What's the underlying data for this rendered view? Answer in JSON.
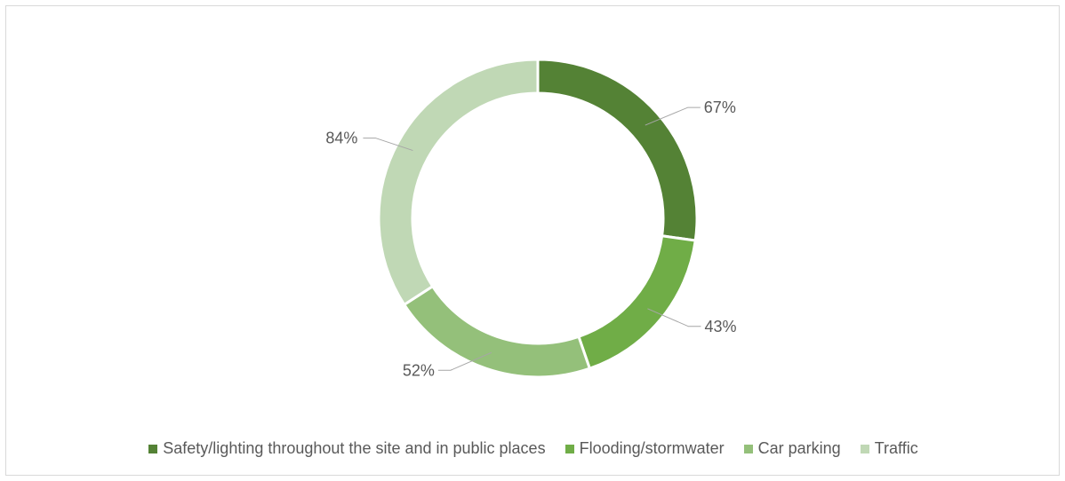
{
  "chart_data": {
    "type": "pie",
    "variant": "doughnut",
    "title": "",
    "categories": [
      "Safety/lighting throughout the site and in public places",
      "Flooding/stormwater",
      "Car parking",
      "Traffic"
    ],
    "values": [
      67,
      43,
      52,
      84
    ],
    "data_labels": [
      "67%",
      "43%",
      "52%",
      "84%"
    ],
    "colors": [
      "#548235",
      "#70ad47",
      "#94c07a",
      "#c0d8b5"
    ],
    "legend_position": "bottom"
  }
}
